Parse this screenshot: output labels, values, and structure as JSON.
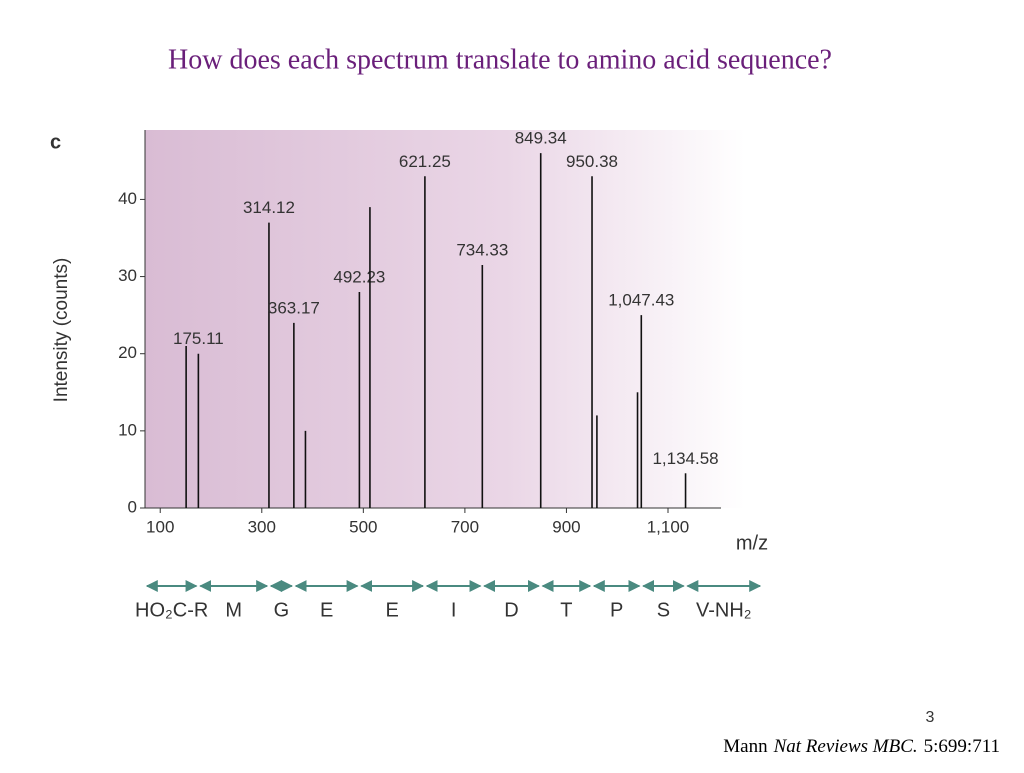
{
  "slide": {
    "title": "How does each spectrum translate to amino acid sequence?",
    "page_number": "3",
    "citation": {
      "author": "Mann",
      "journal": "Nat Reviews MBC.",
      "ref": "5:699:711"
    }
  },
  "chart_data": {
    "type": "stem",
    "panel_label": "c",
    "x_label": "m/z",
    "y_label": "Intensity (counts)",
    "x": [
      151,
      175.11,
      314.12,
      363.17,
      386,
      492.23,
      513,
      621.25,
      734.33,
      849.34,
      950.38,
      960,
      1040,
      1047.43,
      1134.58
    ],
    "values": [
      21,
      20,
      37,
      24,
      10,
      28,
      39,
      43,
      31.5,
      46,
      43,
      12,
      15,
      25,
      4.5
    ],
    "x_labels": [
      null,
      "175.11",
      "314.12",
      "363.17",
      null,
      "492.23",
      null,
      "621.25",
      "734.33",
      "849.34",
      "950.38",
      null,
      null,
      "1,047.43",
      "1,134.58"
    ],
    "color": "#111111",
    "xlim": [
      70,
      1165
    ],
    "xticks": [
      100,
      300,
      500,
      700,
      900,
      {
        "value": 1100,
        "label": "1,100"
      }
    ],
    "ylim": [
      0,
      49
    ],
    "yticks": [
      0,
      10,
      20,
      30,
      40
    ],
    "sequence": [
      "HO₂C-R",
      "M",
      "G",
      "E",
      "E",
      "I",
      "D",
      "T",
      "P",
      "S",
      "V-NH₂"
    ]
  }
}
